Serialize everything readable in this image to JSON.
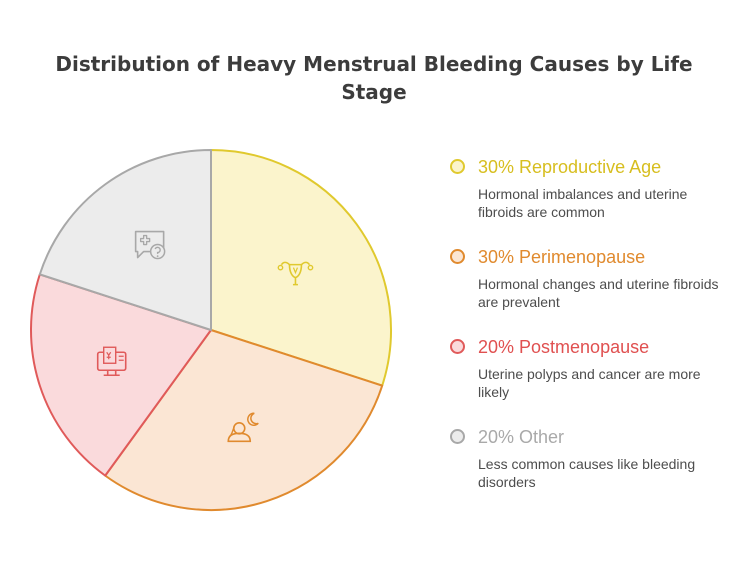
{
  "title": "Distribution of Heavy Menstrual Bleeding Causes by Life Stage",
  "chart_data": {
    "type": "pie",
    "title": "Distribution of Heavy Menstrual Bleeding Causes by Life Stage",
    "start_angle_deg": 0,
    "direction": "clockwise",
    "legend_position": "right",
    "slices": [
      {
        "label": "30% Reproductive Age",
        "value": 30,
        "description": "Hormonal imbalances and uterine fibroids are common",
        "fill": "#fbf4cc",
        "stroke": "#e0c92e",
        "text_color": "#d7be1f",
        "icon": "uterus-icon"
      },
      {
        "label": "30% Perimenopause",
        "value": 30,
        "description": "Hormonal changes and uterine fibroids are prevalent",
        "fill": "#fbe6d4",
        "stroke": "#e08a2e",
        "text_color": "#e08a2e",
        "icon": "woman-moon-icon"
      },
      {
        "label": "20% Postmenopause",
        "value": 20,
        "description": "Uterine polyps and cancer are more likely",
        "fill": "#fadadc",
        "stroke": "#e05a5a",
        "text_color": "#e05050",
        "icon": "medical-report-icon"
      },
      {
        "label": "20% Other",
        "value": 20,
        "description": "Less common causes like bleeding disorders",
        "fill": "#ececec",
        "stroke": "#a8a8a8",
        "text_color": "#a9a9a9",
        "icon": "medical-question-icon"
      }
    ]
  }
}
